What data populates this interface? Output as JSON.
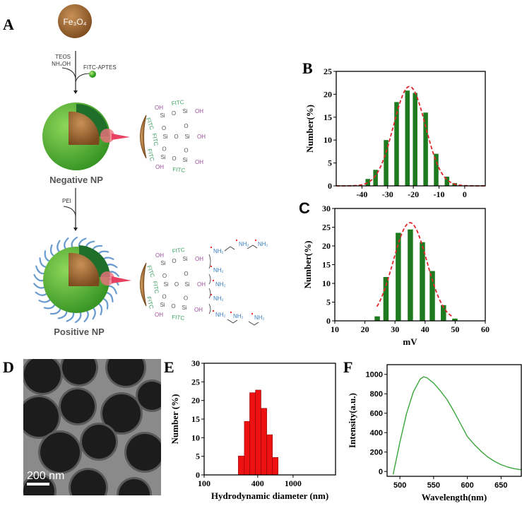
{
  "panel_labels": {
    "a": "A",
    "b": "B",
    "c": "C",
    "d": "D",
    "e": "E",
    "f": "F"
  },
  "panel_a": {
    "core_label": "Fe₃O₄",
    "step1_reagents": [
      "TEOS",
      "NH₄OH"
    ],
    "step1_additive": "FITC-APTES",
    "negative_label": "Negative NP",
    "step2_reagent": "PEI",
    "positive_label": "Positive NP",
    "structure": {
      "si": "Si",
      "o": "O",
      "oh": "OH",
      "fitc": "FITC",
      "nh2": "NH₂"
    },
    "colors": {
      "core": "#9a6331",
      "silica": "#4caf2e",
      "pei": "#6a9bd0",
      "oh": "#9b4f9b",
      "fitc": "#3aa060",
      "nh2": "#3a7fc0"
    }
  },
  "panel_d": {
    "scale_bar": "200 nm"
  },
  "chart_data": [
    {
      "panel": "B",
      "type": "bar",
      "ylabel": "Number(%)",
      "xlabel": "",
      "xlim": [
        -50,
        8
      ],
      "ylim": [
        0,
        25
      ],
      "xticks": [
        -40,
        -30,
        -20,
        -10,
        0
      ],
      "yticks": [
        0,
        5,
        10,
        15,
        20,
        25
      ],
      "x": [
        -37.7,
        -34.7,
        -30.6,
        -26.5,
        -22.3,
        -19.3,
        -15.2,
        -11.1,
        -6.9,
        -3.9
      ],
      "values": [
        1.5,
        3.5,
        10,
        18.3,
        20.8,
        20.3,
        16,
        7,
        2,
        0.6
      ],
      "fit": {
        "type": "gaussian",
        "peak": 21.7,
        "center": -21.5,
        "sigma": 6.2,
        "style": "dashed"
      },
      "bar_color": "#1e7a1e",
      "fit_color": "#e0262a"
    },
    {
      "panel": "C",
      "type": "bar",
      "ylabel": "Number(%)",
      "xlabel": "mV",
      "xlim": [
        10,
        60
      ],
      "ylim": [
        0,
        30
      ],
      "xticks": [
        10,
        20,
        30,
        40,
        50,
        60
      ],
      "yticks": [
        0,
        5,
        10,
        15,
        20,
        25,
        30
      ],
      "x": [
        24.1,
        27.0,
        31.1,
        35.1,
        39.1,
        42.4,
        46.1,
        49.9
      ],
      "values": [
        1.2,
        11.7,
        23.5,
        24.4,
        21,
        13.3,
        4.2,
        0.6
      ],
      "fit": {
        "type": "gaussian",
        "peak": 26.2,
        "center": 35,
        "sigma": 5.6,
        "style": "dashed",
        "range": [
          24,
          49
        ]
      },
      "bar_color": "#1e7a1e",
      "fit_color": "#e0262a"
    },
    {
      "panel": "E",
      "type": "bar",
      "ylabel": "Number (%)",
      "xlabel": "Hydrodynamic diameter (nm)",
      "xscale": "log",
      "xlim": [
        100,
        3000
      ],
      "ylim": [
        0,
        30
      ],
      "xticks": [
        100,
        400,
        1000
      ],
      "yticks": [
        0,
        5,
        10,
        15,
        20,
        25,
        30
      ],
      "bin_edges": [
        242,
        283,
        325,
        377,
        436,
        506,
        586,
        679
      ],
      "values": [
        5.1,
        14.4,
        22.1,
        22.8,
        17.9,
        10.8,
        4.7
      ],
      "bar_color": "#ee1111"
    },
    {
      "panel": "F",
      "type": "line",
      "ylabel": "Intensity(a.u.)",
      "xlabel": "Wavelength(nm)",
      "xlim": [
        481,
        680
      ],
      "ylim": [
        -50,
        1100
      ],
      "xticks": [
        500,
        550,
        600,
        650
      ],
      "yticks": [
        0,
        200,
        400,
        600,
        800,
        1000
      ],
      "x": [
        490,
        500,
        510,
        520,
        530,
        535,
        540,
        550,
        560,
        570,
        580,
        590,
        600,
        610,
        620,
        630,
        640,
        650,
        660,
        670,
        680
      ],
      "y": [
        -30,
        300,
        600,
        820,
        950,
        975,
        965,
        910,
        830,
        740,
        620,
        490,
        360,
        280,
        210,
        150,
        105,
        70,
        45,
        28,
        18
      ],
      "line_color": "#3aa53a"
    }
  ]
}
